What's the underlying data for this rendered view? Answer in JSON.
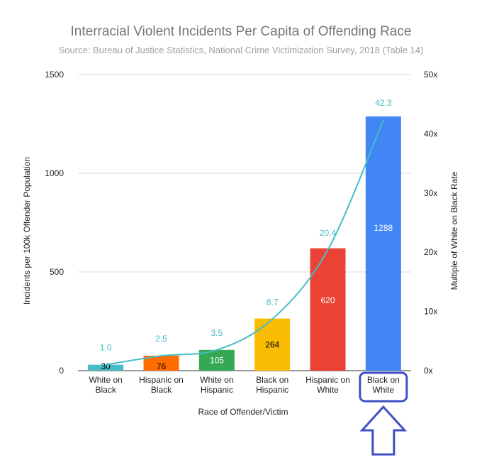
{
  "chart_data": {
    "type": "bar",
    "title": "Interracial Violent Incidents Per Capita of Offending Race",
    "subtitle": "Source: Bureau of Justice Statistics, National Crime Victimization Survey, 2018 (Table 14)",
    "xlabel": "Race of Offender/Victim",
    "ylabel": "Incidents per 100k Offender Population",
    "y2label": "Multiple of White on Black Rate",
    "ylim": [
      0,
      1500
    ],
    "y2lim": [
      0,
      50
    ],
    "yticks": [
      "0",
      "500",
      "1000",
      "1500"
    ],
    "y2ticks": [
      "0x",
      "10x",
      "20x",
      "30x",
      "40x",
      "50x"
    ],
    "categories": [
      [
        "White on",
        "Black"
      ],
      [
        "Hispanic on",
        "Black"
      ],
      [
        "White on",
        "Hispanic"
      ],
      [
        "Black on",
        "Hispanic"
      ],
      [
        "Hispanic on",
        "White"
      ],
      [
        "Black on",
        "White"
      ]
    ],
    "series": [
      {
        "type": "bar",
        "values": [
          30,
          76,
          105,
          264,
          620,
          1288
        ],
        "labels": [
          "30",
          "76",
          "105",
          "264",
          "620",
          "1288"
        ],
        "colors": [
          "#46bdc6",
          "#ff6d01",
          "#34a853",
          "#fbbc04",
          "#ea4335",
          "#4285f4"
        ],
        "label_colors": [
          "#000000",
          "#000000",
          "#ffffff",
          "#000000",
          "#ffffff",
          "#ffffff"
        ]
      },
      {
        "type": "line",
        "axis": "right",
        "values": [
          1.0,
          2.5,
          3.5,
          8.7,
          20.4,
          42.3
        ],
        "labels": [
          "1.0",
          "2.5",
          "3.5",
          "8.7",
          "20.4",
          "42.3"
        ],
        "color": "#46bdc6"
      }
    ],
    "grid": true,
    "highlight_category": 5,
    "highlight_color": "#3f4fc4"
  }
}
